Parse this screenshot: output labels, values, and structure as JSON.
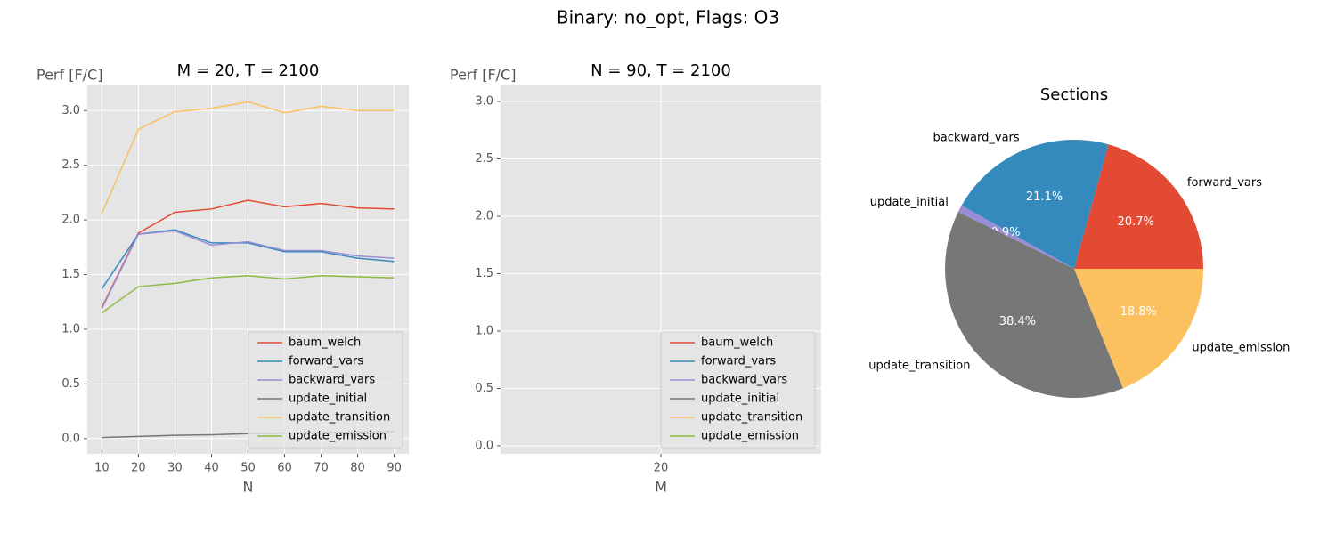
{
  "title": "Binary: no_opt, Flags: O3",
  "chart_data": [
    {
      "type": "line",
      "title": "M = 20, T = 2100",
      "x_label": "N",
      "y_label": "Perf [F/C]",
      "x": [
        10,
        20,
        30,
        40,
        50,
        60,
        70,
        80,
        90
      ],
      "series": [
        {
          "name": "baum_welch",
          "color": "#E24A33",
          "values": [
            1.2,
            1.88,
            2.07,
            2.1,
            2.18,
            2.12,
            2.15,
            2.11,
            2.1
          ]
        },
        {
          "name": "forward_vars",
          "color": "#348ABD",
          "values": [
            1.37,
            1.87,
            1.91,
            1.79,
            1.79,
            1.71,
            1.71,
            1.65,
            1.62
          ]
        },
        {
          "name": "backward_vars",
          "color": "#988ED5",
          "values": [
            1.19,
            1.87,
            1.9,
            1.77,
            1.8,
            1.72,
            1.72,
            1.67,
            1.65
          ]
        },
        {
          "name": "update_initial",
          "color": "#777777",
          "values": [
            0.01,
            0.02,
            0.03,
            0.035,
            0.045,
            0.05,
            0.055,
            0.06,
            0.065
          ]
        },
        {
          "name": "update_transition",
          "color": "#FBC15E",
          "values": [
            2.06,
            2.83,
            2.99,
            3.02,
            3.08,
            2.98,
            3.04,
            3.0,
            3.0
          ]
        },
        {
          "name": "update_emission",
          "color": "#8EBA42",
          "values": [
            1.15,
            1.39,
            1.42,
            1.47,
            1.49,
            1.46,
            1.49,
            1.48,
            1.47
          ]
        }
      ],
      "xlim": [
        6,
        94
      ],
      "xticks": [
        10,
        20,
        30,
        40,
        50,
        60,
        70,
        80,
        90
      ],
      "ylim": [
        -0.14,
        3.23
      ],
      "yticks": [
        {
          "value": 0,
          "label": "0.0"
        },
        0.5,
        {
          "value": 1,
          "label": "1.0"
        },
        1.5,
        {
          "value": 2,
          "label": "2.0"
        },
        2.5,
        {
          "value": 3,
          "label": "3.0"
        }
      ],
      "grid": true,
      "legend": "lower right"
    },
    {
      "type": "line",
      "title": "N = 90, T = 2100",
      "x_label": "M",
      "y_label": "Perf [F/C]",
      "x": [
        20
      ],
      "series": [
        {
          "name": "baum_welch",
          "color": "#E24A33",
          "values": [
            null
          ]
        },
        {
          "name": "forward_vars",
          "color": "#348ABD",
          "values": [
            null
          ]
        },
        {
          "name": "backward_vars",
          "color": "#988ED5",
          "values": [
            null
          ]
        },
        {
          "name": "update_initial",
          "color": "#777777",
          "values": [
            null
          ]
        },
        {
          "name": "update_transition",
          "color": "#FBC15E",
          "values": [
            null
          ]
        },
        {
          "name": "update_emission",
          "color": "#8EBA42",
          "values": [
            null
          ]
        }
      ],
      "xlim": [
        19,
        21
      ],
      "xticks": [
        20
      ],
      "ylim": [
        -0.07,
        3.14
      ],
      "yticks": [
        {
          "value": 0,
          "label": "0.0"
        },
        0.5,
        {
          "value": 1,
          "label": "1.0"
        },
        1.5,
        {
          "value": 2,
          "label": "2.0"
        },
        2.5,
        {
          "value": 3,
          "label": "3.0"
        }
      ],
      "grid": true,
      "legend": "lower right"
    },
    {
      "type": "pie",
      "title": "Sections",
      "categories": [
        "forward_vars",
        "backward_vars",
        "update_initial",
        "update_transition",
        "update_emission"
      ],
      "values": [
        20.7,
        21.1,
        0.9,
        38.4,
        18.8
      ],
      "value_labels": [
        "20.7%",
        "21.1%",
        "0.9%",
        "38.4%",
        "18.8%"
      ],
      "colors": [
        "#E24A33",
        "#348ABD",
        "#988ED5",
        "#777777",
        "#FBC15E"
      ]
    }
  ]
}
